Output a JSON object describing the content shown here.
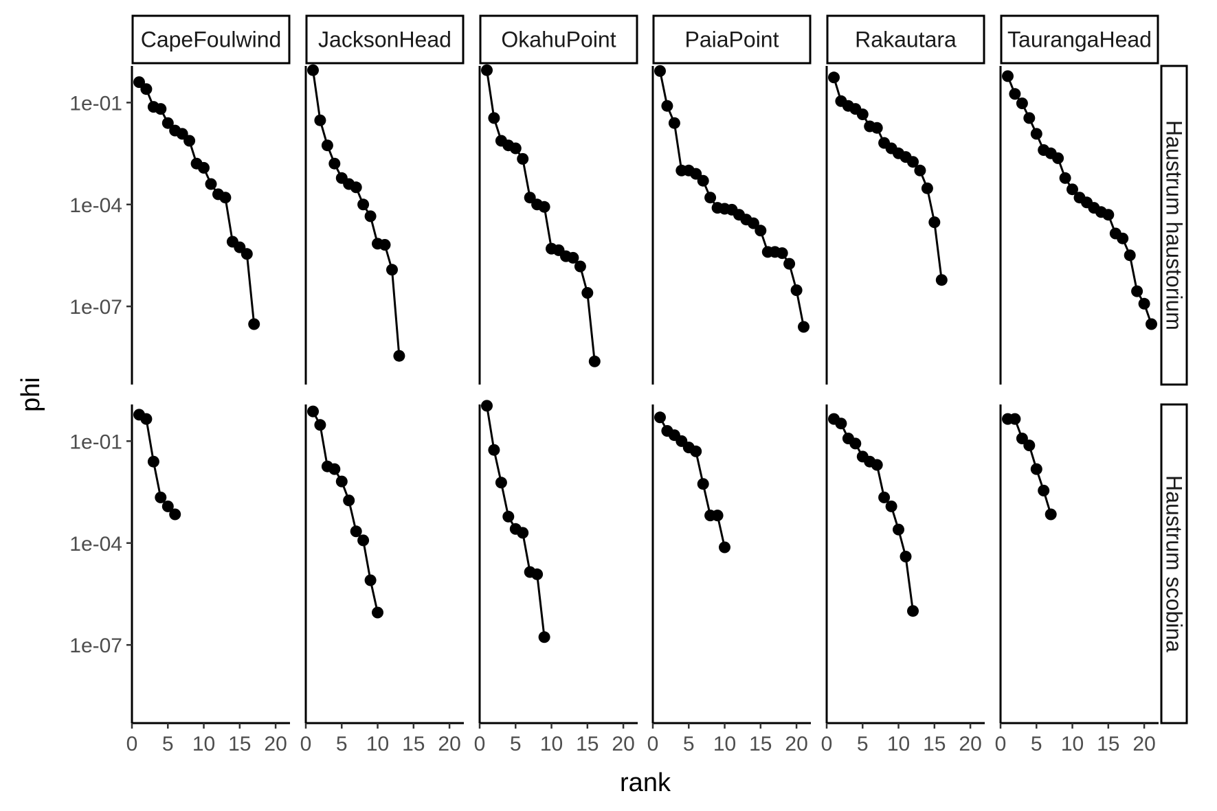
{
  "chart_data": {
    "type": "line",
    "xlabel": "rank",
    "ylabel": "phi",
    "y_scale": "log10",
    "ylim": [
      5e-10,
      1.2
    ],
    "xlim": [
      0,
      22
    ],
    "x_ticks": [
      0,
      5,
      10,
      15,
      20
    ],
    "x_tick_labels": [
      "0",
      "5",
      "10",
      "15",
      "20"
    ],
    "y_ticks": [
      1e-07,
      0.0001,
      0.1
    ],
    "y_tick_labels": [
      "1e-07",
      "1e-04",
      "1e-01"
    ],
    "grid": false,
    "columns": [
      "CapeFoulwind",
      "JacksonHead",
      "OkahuPoint",
      "PaiaPoint",
      "Rakautara",
      "TaurangaHead"
    ],
    "rows": [
      "Haustrum haustorium",
      "Haustrum scobina"
    ],
    "panels": [
      {
        "row": "Haustrum haustorium",
        "column": "CapeFoulwind",
        "x": [
          1,
          2,
          3,
          4,
          5,
          6,
          7,
          8,
          9,
          10,
          11,
          12,
          13,
          14,
          15,
          16,
          17
        ],
        "y": [
          0.4,
          0.25,
          0.075,
          0.065,
          0.025,
          0.015,
          0.012,
          0.0075,
          0.0016,
          0.0012,
          0.0004,
          0.0002,
          0.00016,
          8e-06,
          5.5e-06,
          3.5e-06,
          3e-08
        ]
      },
      {
        "row": "Haustrum haustorium",
        "column": "JacksonHead",
        "x": [
          1,
          2,
          3,
          4,
          5,
          6,
          7,
          8,
          9,
          10,
          11,
          12,
          13
        ],
        "y": [
          0.9,
          0.03,
          0.0055,
          0.0016,
          0.0006,
          0.0004,
          0.00032,
          0.0001,
          4.5e-05,
          7e-06,
          6.5e-06,
          1.2e-06,
          3.5e-09
        ]
      },
      {
        "row": "Haustrum haustorium",
        "column": "OkahuPoint",
        "x": [
          1,
          2,
          3,
          4,
          5,
          6,
          7,
          8,
          9,
          10,
          11,
          12,
          13,
          14,
          15,
          16
        ],
        "y": [
          0.9,
          0.035,
          0.0075,
          0.0055,
          0.0045,
          0.0022,
          0.00016,
          0.0001,
          8.5e-05,
          5e-06,
          4.5e-06,
          3e-06,
          2.7e-06,
          1.5e-06,
          2.5e-07,
          2.4e-09
        ]
      },
      {
        "row": "Haustrum haustorium",
        "column": "PaiaPoint",
        "x": [
          1,
          2,
          3,
          4,
          5,
          6,
          7,
          8,
          9,
          10,
          11,
          12,
          13,
          14,
          15,
          16,
          17,
          18,
          19,
          20,
          21
        ],
        "y": [
          0.85,
          0.08,
          0.025,
          0.001,
          0.001,
          0.0008,
          0.0005,
          0.00016,
          8e-05,
          7.5e-05,
          7e-05,
          5e-05,
          3.6e-05,
          2.8e-05,
          1.7e-05,
          4e-06,
          4e-06,
          3.7e-06,
          1.8e-06,
          3e-07,
          2.5e-08
        ]
      },
      {
        "row": "Haustrum haustorium",
        "column": "Rakautara",
        "x": [
          1,
          2,
          3,
          4,
          5,
          6,
          7,
          8,
          9,
          10,
          11,
          12,
          13,
          14,
          15,
          16
        ],
        "y": [
          0.55,
          0.11,
          0.08,
          0.065,
          0.045,
          0.02,
          0.018,
          0.0065,
          0.0045,
          0.0032,
          0.0025,
          0.0018,
          0.001,
          0.0003,
          3e-05,
          6e-07
        ]
      },
      {
        "row": "Haustrum haustorium",
        "column": "TaurangaHead",
        "x": [
          1,
          2,
          3,
          4,
          5,
          6,
          7,
          8,
          9,
          10,
          11,
          12,
          13,
          14,
          15,
          16,
          17,
          18,
          19,
          20,
          21
        ],
        "y": [
          0.6,
          0.18,
          0.095,
          0.035,
          0.012,
          0.004,
          0.0032,
          0.0023,
          0.0006,
          0.00028,
          0.00016,
          0.000115,
          8e-05,
          6e-05,
          5e-05,
          1.4e-05,
          1e-05,
          3.2e-06,
          2.8e-07,
          1.2e-07,
          3e-08
        ]
      },
      {
        "row": "Haustrum scobina",
        "column": "CapeFoulwind",
        "x": [
          1,
          2,
          3,
          4,
          5,
          6
        ],
        "y": [
          0.6,
          0.45,
          0.025,
          0.0022,
          0.0012,
          0.0007
        ]
      },
      {
        "row": "Haustrum scobina",
        "column": "JacksonHead",
        "x": [
          1,
          2,
          3,
          4,
          5,
          6,
          7,
          8,
          9,
          10
        ],
        "y": [
          0.75,
          0.3,
          0.018,
          0.015,
          0.0065,
          0.0018,
          0.00022,
          0.00012,
          8e-06,
          9e-07
        ]
      },
      {
        "row": "Haustrum scobina",
        "column": "OkahuPoint",
        "x": [
          1,
          2,
          3,
          4,
          5,
          6,
          7,
          8,
          9
        ],
        "y": [
          1.1,
          0.055,
          0.006,
          0.0006,
          0.00026,
          0.0002,
          1.4e-05,
          1.2e-05,
          1.7e-07
        ]
      },
      {
        "row": "Haustrum scobina",
        "column": "PaiaPoint",
        "x": [
          1,
          2,
          3,
          4,
          5,
          6,
          7,
          8,
          9,
          10
        ],
        "y": [
          0.5,
          0.2,
          0.15,
          0.1,
          0.065,
          0.05,
          0.0055,
          0.00065,
          0.00065,
          7.5e-05
        ]
      },
      {
        "row": "Haustrum scobina",
        "column": "Rakautara",
        "x": [
          1,
          2,
          3,
          4,
          5,
          6,
          7,
          8,
          9,
          10,
          11,
          12
        ],
        "y": [
          0.45,
          0.33,
          0.12,
          0.085,
          0.035,
          0.025,
          0.02,
          0.0022,
          0.0012,
          0.00025,
          4e-05,
          1e-06
        ]
      },
      {
        "row": "Haustrum scobina",
        "column": "TaurangaHead",
        "x": [
          1,
          2,
          3,
          4,
          5,
          6,
          7
        ],
        "y": [
          0.45,
          0.45,
          0.12,
          0.075,
          0.015,
          0.0035,
          0.0007
        ]
      }
    ]
  }
}
